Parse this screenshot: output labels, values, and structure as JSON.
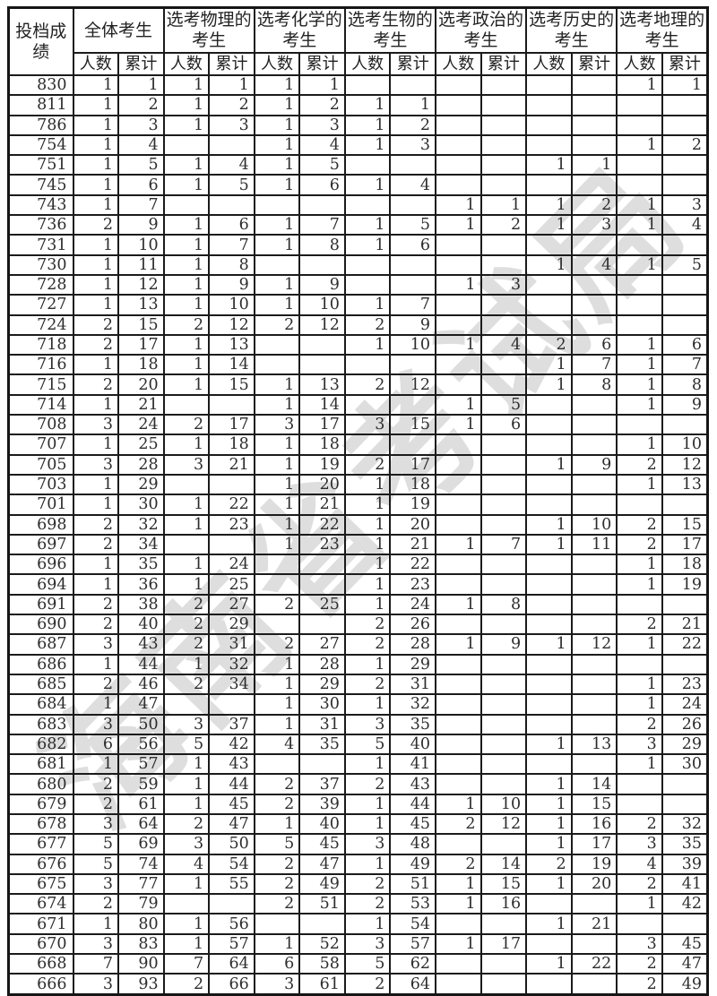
{
  "watermark": {
    "text": "海南省考试局"
  },
  "table": {
    "corner_lines": [
      "投档成",
      "绩"
    ],
    "group_headers": [
      [
        "全体考生"
      ],
      [
        "选考物理的",
        "考生"
      ],
      [
        "选考化学的",
        "考生"
      ],
      [
        "选考生物的",
        "考生"
      ],
      [
        "选考政治的",
        "考生"
      ],
      [
        "选考历史的",
        "考生"
      ],
      [
        "选考地理的",
        "考生"
      ]
    ],
    "sub_headers": [
      "人数",
      "累计"
    ],
    "rows": [
      {
        "score": "830",
        "cells": [
          "1",
          "1",
          "1",
          "1",
          "1",
          "1",
          "",
          "",
          "",
          "",
          "",
          "",
          "1",
          "1"
        ]
      },
      {
        "score": "811",
        "cells": [
          "1",
          "2",
          "1",
          "2",
          "1",
          "2",
          "1",
          "1",
          "",
          "",
          "",
          "",
          "",
          ""
        ]
      },
      {
        "score": "786",
        "cells": [
          "1",
          "3",
          "1",
          "3",
          "1",
          "3",
          "1",
          "2",
          "",
          "",
          "",
          "",
          "",
          ""
        ]
      },
      {
        "score": "754",
        "cells": [
          "1",
          "4",
          "",
          "",
          "1",
          "4",
          "1",
          "3",
          "",
          "",
          "",
          "",
          "1",
          "2"
        ]
      },
      {
        "score": "751",
        "cells": [
          "1",
          "5",
          "1",
          "4",
          "1",
          "5",
          "",
          "",
          "",
          "",
          "1",
          "1",
          "",
          ""
        ]
      },
      {
        "score": "745",
        "cells": [
          "1",
          "6",
          "1",
          "5",
          "1",
          "6",
          "1",
          "4",
          "",
          "",
          "",
          "",
          "",
          ""
        ]
      },
      {
        "score": "743",
        "cells": [
          "1",
          "7",
          "",
          "",
          "",
          "",
          "",
          "",
          "1",
          "1",
          "1",
          "2",
          "1",
          "3"
        ]
      },
      {
        "score": "736",
        "cells": [
          "2",
          "9",
          "1",
          "6",
          "1",
          "7",
          "1",
          "5",
          "1",
          "2",
          "1",
          "3",
          "1",
          "4"
        ]
      },
      {
        "score": "731",
        "cells": [
          "1",
          "10",
          "1",
          "7",
          "1",
          "8",
          "1",
          "6",
          "",
          "",
          "",
          "",
          "",
          ""
        ]
      },
      {
        "score": "730",
        "cells": [
          "1",
          "11",
          "1",
          "8",
          "",
          "",
          "",
          "",
          "",
          "",
          "1",
          "4",
          "1",
          "5"
        ]
      },
      {
        "score": "728",
        "cells": [
          "1",
          "12",
          "1",
          "9",
          "1",
          "9",
          "",
          "",
          "1",
          "3",
          "",
          "",
          "",
          ""
        ]
      },
      {
        "score": "727",
        "cells": [
          "1",
          "13",
          "1",
          "10",
          "1",
          "10",
          "1",
          "7",
          "",
          "",
          "",
          "",
          "",
          ""
        ]
      },
      {
        "score": "724",
        "cells": [
          "2",
          "15",
          "2",
          "12",
          "2",
          "12",
          "2",
          "9",
          "",
          "",
          "",
          "",
          "",
          ""
        ]
      },
      {
        "score": "718",
        "cells": [
          "2",
          "17",
          "1",
          "13",
          "",
          "",
          "1",
          "10",
          "1",
          "4",
          "2",
          "6",
          "1",
          "6"
        ]
      },
      {
        "score": "716",
        "cells": [
          "1",
          "18",
          "1",
          "14",
          "",
          "",
          "",
          "",
          "",
          "",
          "1",
          "7",
          "1",
          "7"
        ]
      },
      {
        "score": "715",
        "cells": [
          "2",
          "20",
          "1",
          "15",
          "1",
          "13",
          "2",
          "12",
          "",
          "",
          "1",
          "8",
          "1",
          "8"
        ]
      },
      {
        "score": "714",
        "cells": [
          "1",
          "21",
          "",
          "",
          "1",
          "14",
          "",
          "",
          "1",
          "5",
          "",
          "",
          "1",
          "9"
        ]
      },
      {
        "score": "708",
        "cells": [
          "3",
          "24",
          "2",
          "17",
          "3",
          "17",
          "3",
          "15",
          "1",
          "6",
          "",
          "",
          "",
          ""
        ]
      },
      {
        "score": "707",
        "cells": [
          "1",
          "25",
          "1",
          "18",
          "1",
          "18",
          "",
          "",
          "",
          "",
          "",
          "",
          "1",
          "10"
        ]
      },
      {
        "score": "705",
        "cells": [
          "3",
          "28",
          "3",
          "21",
          "1",
          "19",
          "2",
          "17",
          "",
          "",
          "1",
          "9",
          "2",
          "12"
        ]
      },
      {
        "score": "703",
        "cells": [
          "1",
          "29",
          "",
          "",
          "1",
          "20",
          "1",
          "18",
          "",
          "",
          "",
          "",
          "1",
          "13"
        ]
      },
      {
        "score": "701",
        "cells": [
          "1",
          "30",
          "1",
          "22",
          "1",
          "21",
          "1",
          "19",
          "",
          "",
          "",
          "",
          "",
          ""
        ]
      },
      {
        "score": "698",
        "cells": [
          "2",
          "32",
          "1",
          "23",
          "1",
          "22",
          "1",
          "20",
          "",
          "",
          "1",
          "10",
          "2",
          "15"
        ]
      },
      {
        "score": "697",
        "cells": [
          "2",
          "34",
          "",
          "",
          "1",
          "23",
          "1",
          "21",
          "1",
          "7",
          "1",
          "11",
          "2",
          "17"
        ]
      },
      {
        "score": "696",
        "cells": [
          "1",
          "35",
          "1",
          "24",
          "",
          "",
          "1",
          "22",
          "",
          "",
          "",
          "",
          "1",
          "18"
        ]
      },
      {
        "score": "694",
        "cells": [
          "1",
          "36",
          "1",
          "25",
          "",
          "",
          "1",
          "23",
          "",
          "",
          "",
          "",
          "1",
          "19"
        ]
      },
      {
        "score": "691",
        "cells": [
          "2",
          "38",
          "2",
          "27",
          "2",
          "25",
          "1",
          "24",
          "1",
          "8",
          "",
          "",
          "",
          ""
        ]
      },
      {
        "score": "690",
        "cells": [
          "2",
          "40",
          "2",
          "29",
          "",
          "",
          "2",
          "26",
          "",
          "",
          "",
          "",
          "2",
          "21"
        ]
      },
      {
        "score": "687",
        "cells": [
          "3",
          "43",
          "2",
          "31",
          "2",
          "27",
          "2",
          "28",
          "1",
          "9",
          "1",
          "12",
          "1",
          "22"
        ]
      },
      {
        "score": "686",
        "cells": [
          "1",
          "44",
          "1",
          "32",
          "1",
          "28",
          "1",
          "29",
          "",
          "",
          "",
          "",
          "",
          ""
        ]
      },
      {
        "score": "685",
        "cells": [
          "2",
          "46",
          "2",
          "34",
          "1",
          "29",
          "2",
          "31",
          "",
          "",
          "",
          "",
          "1",
          "23"
        ]
      },
      {
        "score": "684",
        "cells": [
          "1",
          "47",
          "",
          "",
          "1",
          "30",
          "1",
          "32",
          "",
          "",
          "",
          "",
          "1",
          "24"
        ]
      },
      {
        "score": "683",
        "cells": [
          "3",
          "50",
          "3",
          "37",
          "1",
          "31",
          "3",
          "35",
          "",
          "",
          "",
          "",
          "2",
          "26"
        ]
      },
      {
        "score": "682",
        "cells": [
          "6",
          "56",
          "5",
          "42",
          "4",
          "35",
          "5",
          "40",
          "",
          "",
          "1",
          "13",
          "3",
          "29"
        ]
      },
      {
        "score": "681",
        "cells": [
          "1",
          "57",
          "1",
          "43",
          "",
          "",
          "1",
          "41",
          "",
          "",
          "",
          "",
          "1",
          "30"
        ]
      },
      {
        "score": "680",
        "cells": [
          "2",
          "59",
          "1",
          "44",
          "2",
          "37",
          "2",
          "43",
          "",
          "",
          "1",
          "14",
          "",
          ""
        ]
      },
      {
        "score": "679",
        "cells": [
          "2",
          "61",
          "1",
          "45",
          "2",
          "39",
          "1",
          "44",
          "1",
          "10",
          "1",
          "15",
          "",
          ""
        ]
      },
      {
        "score": "678",
        "cells": [
          "3",
          "64",
          "2",
          "47",
          "1",
          "40",
          "1",
          "45",
          "2",
          "12",
          "1",
          "16",
          "2",
          "32"
        ]
      },
      {
        "score": "677",
        "cells": [
          "5",
          "69",
          "3",
          "50",
          "5",
          "45",
          "3",
          "48",
          "",
          "",
          "1",
          "17",
          "3",
          "35"
        ]
      },
      {
        "score": "676",
        "cells": [
          "5",
          "74",
          "4",
          "54",
          "2",
          "47",
          "1",
          "49",
          "2",
          "14",
          "2",
          "19",
          "4",
          "39"
        ]
      },
      {
        "score": "675",
        "cells": [
          "3",
          "77",
          "1",
          "55",
          "2",
          "49",
          "2",
          "51",
          "1",
          "15",
          "1",
          "20",
          "2",
          "41"
        ]
      },
      {
        "score": "674",
        "cells": [
          "2",
          "79",
          "",
          "",
          "2",
          "51",
          "2",
          "53",
          "1",
          "16",
          "",
          "",
          "1",
          "42"
        ]
      },
      {
        "score": "671",
        "cells": [
          "1",
          "80",
          "1",
          "56",
          "",
          "",
          "1",
          "54",
          "",
          "",
          "1",
          "21",
          "",
          ""
        ]
      },
      {
        "score": "670",
        "cells": [
          "3",
          "83",
          "1",
          "57",
          "1",
          "52",
          "3",
          "57",
          "1",
          "17",
          "",
          "",
          "3",
          "45"
        ]
      },
      {
        "score": "668",
        "cells": [
          "7",
          "90",
          "7",
          "64",
          "6",
          "58",
          "5",
          "62",
          "",
          "",
          "1",
          "22",
          "2",
          "47"
        ]
      },
      {
        "score": "666",
        "cells": [
          "3",
          "93",
          "2",
          "66",
          "3",
          "61",
          "2",
          "64",
          "",
          "",
          "",
          "",
          "2",
          "49"
        ]
      }
    ]
  }
}
